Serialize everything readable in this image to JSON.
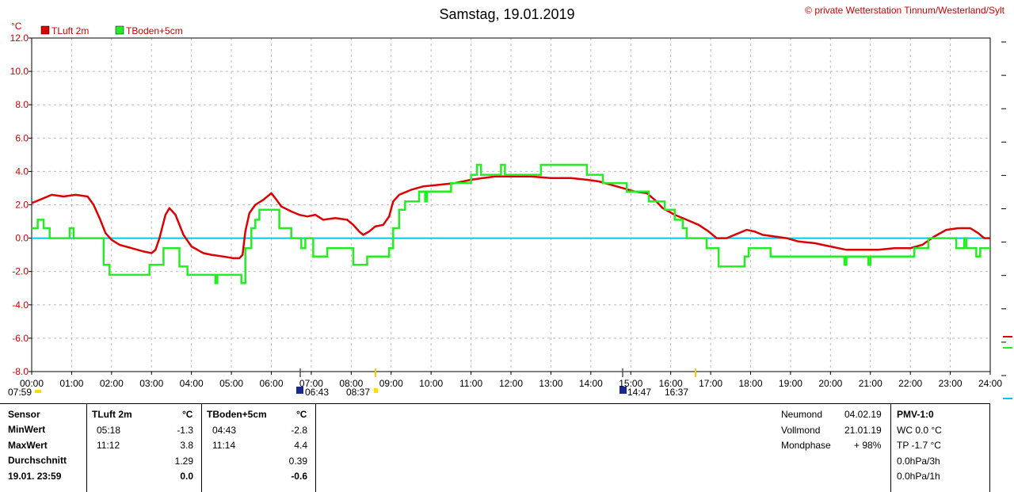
{
  "title": "Samstag, 19.01.2019",
  "copyright": "© private Wetterstation Tinnum/Westerland/Sylt",
  "unit_label": "°C",
  "colors": {
    "red": "#dd0000",
    "green": "#22ee22",
    "zero": "#00c8e0",
    "grid": "#bbbbbb"
  },
  "chart_data": {
    "type": "line",
    "ylim": [
      -8,
      12
    ],
    "y_ticks": [
      "12.0",
      "10.0",
      "8.0",
      "6.0",
      "4.0",
      "2.0",
      "0.0",
      "-2.0",
      "-4.0",
      "-6.0",
      "-8.0"
    ],
    "x_ticks": [
      "00:00",
      "01:00",
      "02:00",
      "03:00",
      "04:00",
      "05:00",
      "06:00",
      "07:00",
      "08:00",
      "09:00",
      "10:00",
      "11:00",
      "12:00",
      "13:00",
      "14:00",
      "15:00",
      "16:00",
      "17:00",
      "18:00",
      "19:00",
      "20:00",
      "21:00",
      "22:00",
      "23:00",
      "24:00"
    ],
    "series": [
      {
        "name": "TLuft 2m",
        "color": "#dd0000",
        "points": [
          [
            0,
            2.1
          ],
          [
            0.3,
            2.4
          ],
          [
            0.5,
            2.6
          ],
          [
            0.8,
            2.5
          ],
          [
            1.1,
            2.6
          ],
          [
            1.4,
            2.5
          ],
          [
            1.55,
            2.0
          ],
          [
            1.7,
            1.2
          ],
          [
            1.85,
            0.3
          ],
          [
            2.0,
            -0.1
          ],
          [
            2.2,
            -0.4
          ],
          [
            2.5,
            -0.6
          ],
          [
            2.8,
            -0.8
          ],
          [
            3.0,
            -0.9
          ],
          [
            3.1,
            -0.7
          ],
          [
            3.2,
            0.0
          ],
          [
            3.35,
            1.4
          ],
          [
            3.45,
            1.8
          ],
          [
            3.6,
            1.4
          ],
          [
            3.8,
            0.2
          ],
          [
            4.0,
            -0.5
          ],
          [
            4.3,
            -0.9
          ],
          [
            4.5,
            -1.0
          ],
          [
            4.8,
            -1.1
          ],
          [
            5.05,
            -1.2
          ],
          [
            5.2,
            -1.2
          ],
          [
            5.28,
            -1.0
          ],
          [
            5.35,
            0.4
          ],
          [
            5.45,
            1.5
          ],
          [
            5.6,
            2.0
          ],
          [
            5.8,
            2.3
          ],
          [
            6.0,
            2.7
          ],
          [
            6.1,
            2.4
          ],
          [
            6.25,
            1.9
          ],
          [
            6.5,
            1.6
          ],
          [
            6.7,
            1.4
          ],
          [
            6.9,
            1.3
          ],
          [
            7.1,
            1.4
          ],
          [
            7.3,
            1.1
          ],
          [
            7.6,
            1.2
          ],
          [
            7.9,
            1.1
          ],
          [
            8.05,
            0.8
          ],
          [
            8.2,
            0.4
          ],
          [
            8.3,
            0.2
          ],
          [
            8.45,
            0.4
          ],
          [
            8.6,
            0.7
          ],
          [
            8.8,
            0.8
          ],
          [
            8.95,
            1.3
          ],
          [
            9.05,
            2.2
          ],
          [
            9.2,
            2.6
          ],
          [
            9.5,
            2.9
          ],
          [
            9.8,
            3.1
          ],
          [
            10.2,
            3.2
          ],
          [
            10.6,
            3.3
          ],
          [
            11.0,
            3.5
          ],
          [
            11.3,
            3.6
          ],
          [
            11.6,
            3.7
          ],
          [
            12.0,
            3.7
          ],
          [
            12.5,
            3.7
          ],
          [
            13.0,
            3.6
          ],
          [
            13.5,
            3.6
          ],
          [
            13.9,
            3.5
          ],
          [
            14.2,
            3.4
          ],
          [
            14.5,
            3.2
          ],
          [
            14.8,
            3.0
          ],
          [
            15.1,
            2.8
          ],
          [
            15.4,
            2.7
          ],
          [
            15.6,
            2.3
          ],
          [
            15.8,
            1.8
          ],
          [
            16.1,
            1.4
          ],
          [
            16.4,
            1.1
          ],
          [
            16.7,
            0.8
          ],
          [
            16.95,
            0.4
          ],
          [
            17.15,
            0.0
          ],
          [
            17.4,
            0.0
          ],
          [
            17.7,
            0.3
          ],
          [
            17.9,
            0.5
          ],
          [
            18.1,
            0.4
          ],
          [
            18.3,
            0.2
          ],
          [
            18.6,
            0.1
          ],
          [
            18.9,
            0.0
          ],
          [
            19.2,
            -0.2
          ],
          [
            19.6,
            -0.3
          ],
          [
            20.0,
            -0.5
          ],
          [
            20.4,
            -0.7
          ],
          [
            20.8,
            -0.7
          ],
          [
            21.2,
            -0.7
          ],
          [
            21.6,
            -0.6
          ],
          [
            22.0,
            -0.6
          ],
          [
            22.3,
            -0.4
          ],
          [
            22.6,
            0.1
          ],
          [
            22.9,
            0.5
          ],
          [
            23.2,
            0.6
          ],
          [
            23.5,
            0.6
          ],
          [
            23.7,
            0.3
          ],
          [
            23.85,
            0.0
          ],
          [
            24.0,
            0.0
          ]
        ]
      },
      {
        "name": "TBoden+5cm",
        "color": "#22ee22",
        "points": [
          [
            0,
            0.6
          ],
          [
            0.1,
            0.6
          ],
          [
            0.15,
            1.1
          ],
          [
            0.3,
            0.6
          ],
          [
            0.45,
            0.0
          ],
          [
            0.9,
            0.0
          ],
          [
            0.95,
            0.6
          ],
          [
            1.05,
            0.0
          ],
          [
            1.6,
            0.0
          ],
          [
            1.8,
            -1.6
          ],
          [
            1.95,
            -2.2
          ],
          [
            2.9,
            -2.2
          ],
          [
            2.95,
            -1.6
          ],
          [
            3.2,
            -1.6
          ],
          [
            3.3,
            -0.6
          ],
          [
            3.55,
            -0.6
          ],
          [
            3.7,
            -1.7
          ],
          [
            3.8,
            -1.7
          ],
          [
            3.9,
            -2.2
          ],
          [
            4.5,
            -2.2
          ],
          [
            4.6,
            -2.7
          ],
          [
            4.65,
            -2.2
          ],
          [
            5.2,
            -2.2
          ],
          [
            5.25,
            -2.7
          ],
          [
            5.35,
            -0.6
          ],
          [
            5.5,
            0.6
          ],
          [
            5.6,
            1.1
          ],
          [
            5.7,
            1.7
          ],
          [
            6.1,
            1.7
          ],
          [
            6.2,
            0.6
          ],
          [
            6.5,
            0.0
          ],
          [
            6.7,
            0.0
          ],
          [
            6.75,
            -0.6
          ],
          [
            6.85,
            0.0
          ],
          [
            6.95,
            0.0
          ],
          [
            7.05,
            -1.1
          ],
          [
            7.3,
            -1.1
          ],
          [
            7.4,
            -0.6
          ],
          [
            8.0,
            -0.6
          ],
          [
            8.05,
            -1.6
          ],
          [
            8.3,
            -1.6
          ],
          [
            8.4,
            -1.1
          ],
          [
            8.9,
            -1.1
          ],
          [
            8.95,
            -0.6
          ],
          [
            9.05,
            0.6
          ],
          [
            9.2,
            1.7
          ],
          [
            9.35,
            2.2
          ],
          [
            9.6,
            2.2
          ],
          [
            9.7,
            2.8
          ],
          [
            9.85,
            2.2
          ],
          [
            9.9,
            2.8
          ],
          [
            10.4,
            2.8
          ],
          [
            10.5,
            3.3
          ],
          [
            10.9,
            3.3
          ],
          [
            11.0,
            3.8
          ],
          [
            11.15,
            4.4
          ],
          [
            11.25,
            3.8
          ],
          [
            11.7,
            3.8
          ],
          [
            11.75,
            4.4
          ],
          [
            11.85,
            3.8
          ],
          [
            12.7,
            3.8
          ],
          [
            12.75,
            4.4
          ],
          [
            13.8,
            4.4
          ],
          [
            13.9,
            3.8
          ],
          [
            14.2,
            3.8
          ],
          [
            14.3,
            3.3
          ],
          [
            14.8,
            3.3
          ],
          [
            14.9,
            2.8
          ],
          [
            15.4,
            2.8
          ],
          [
            15.45,
            2.2
          ],
          [
            15.8,
            2.2
          ],
          [
            15.85,
            1.7
          ],
          [
            16.0,
            1.7
          ],
          [
            16.1,
            1.1
          ],
          [
            16.3,
            0.6
          ],
          [
            16.4,
            0.0
          ],
          [
            16.8,
            0.0
          ],
          [
            16.9,
            -0.6
          ],
          [
            17.1,
            -0.6
          ],
          [
            17.2,
            -1.7
          ],
          [
            17.8,
            -1.7
          ],
          [
            17.85,
            -1.1
          ],
          [
            17.95,
            -0.6
          ],
          [
            18.4,
            -0.6
          ],
          [
            18.5,
            -1.1
          ],
          [
            19.0,
            -1.1
          ],
          [
            20.3,
            -1.1
          ],
          [
            20.35,
            -1.6
          ],
          [
            20.4,
            -1.1
          ],
          [
            20.9,
            -1.1
          ],
          [
            20.95,
            -1.6
          ],
          [
            21.0,
            -1.1
          ],
          [
            22.0,
            -1.1
          ],
          [
            22.1,
            -0.6
          ],
          [
            22.3,
            -0.6
          ],
          [
            22.45,
            0.0
          ],
          [
            23.05,
            0.0
          ],
          [
            23.15,
            -0.6
          ],
          [
            23.3,
            -0.6
          ],
          [
            23.35,
            0.0
          ],
          [
            23.4,
            -0.6
          ],
          [
            23.6,
            -0.6
          ],
          [
            23.65,
            -1.1
          ],
          [
            23.75,
            -0.6
          ],
          [
            24.0,
            -0.6
          ]
        ]
      }
    ]
  },
  "astro": {
    "sunrise": "07:59",
    "moonset": "06:43",
    "sunset": "08:37",
    "moonrise": "14:47",
    "dusk": "16:37"
  },
  "table": {
    "sensor_header": "Sensor",
    "row_labels": [
      "MinWert",
      "MaxWert",
      "Durchschnitt",
      "19.01. 23:59"
    ],
    "col1": {
      "name": "TLuft 2m",
      "unit": "°C",
      "min_time": "05:18",
      "min": "-1.3",
      "max_time": "11:12",
      "max": "3.8",
      "avg": "1.29",
      "current": "0.0"
    },
    "col2": {
      "name": "TBoden+5cm",
      "unit": "°C",
      "min_time": "04:43",
      "min": "-2.8",
      "max_time": "11:14",
      "max": "4.4",
      "avg": "0.39",
      "current": "-0.6"
    }
  },
  "moon": {
    "new_label": "Neumond",
    "new_date": "04.02.19",
    "full_label": "Vollmond",
    "full_date": "21.01.19",
    "phase_label": "Mondphase",
    "phase_value": "+ 98%"
  },
  "pmv": {
    "header": "PMV-1:0",
    "wc": "WC 0.0 °C",
    "tp": "TP -1.7 °C",
    "p3h": "0.0hPa/3h",
    "p1h": "0.0hPa/1h"
  }
}
